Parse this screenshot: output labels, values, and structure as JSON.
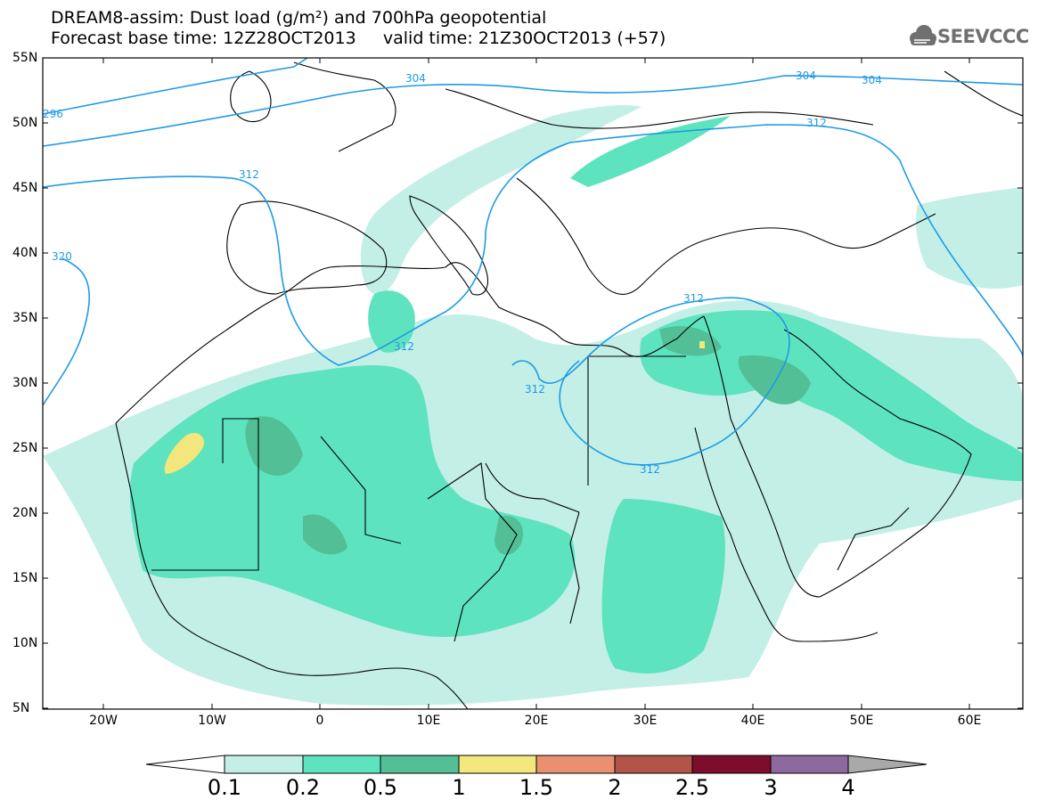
{
  "title": {
    "line1": "DREAM8-assim: Dust load (g/m²) and 700hPa geopotential",
    "line2": "Forecast base time: 12Z28OCT2013     valid time: 21Z30OCT2013 (+57)"
  },
  "logo": {
    "text": "SEEVCCC",
    "icon": "cloud-icon"
  },
  "map": {
    "lat_labels": [
      "55N",
      "50N",
      "45N",
      "40N",
      "35N",
      "30N",
      "25N",
      "20N",
      "15N",
      "10N",
      "5N"
    ],
    "lon_labels": [
      "20W",
      "10W",
      "0",
      "10E",
      "20E",
      "30E",
      "40E",
      "50E",
      "60E"
    ],
    "contour_labels": [
      "304",
      "304",
      "304",
      "296",
      "312",
      "312",
      "312",
      "312",
      "312",
      "312",
      "320"
    ],
    "contour_color": "#1e9be6",
    "coastline_color": "#000000"
  },
  "colorbar": {
    "labels": [
      "0.1",
      "0.2",
      "0.5",
      "1",
      "1.5",
      "2",
      "2.5",
      "3",
      "4"
    ],
    "colors": [
      "#ffffff",
      "#c3efe7",
      "#5ee3bf",
      "#52bf97",
      "#f2e67c",
      "#e99071",
      "#b25448",
      "#7e0c2c",
      "#8c6aa0",
      "#a9a9a9"
    ]
  }
}
